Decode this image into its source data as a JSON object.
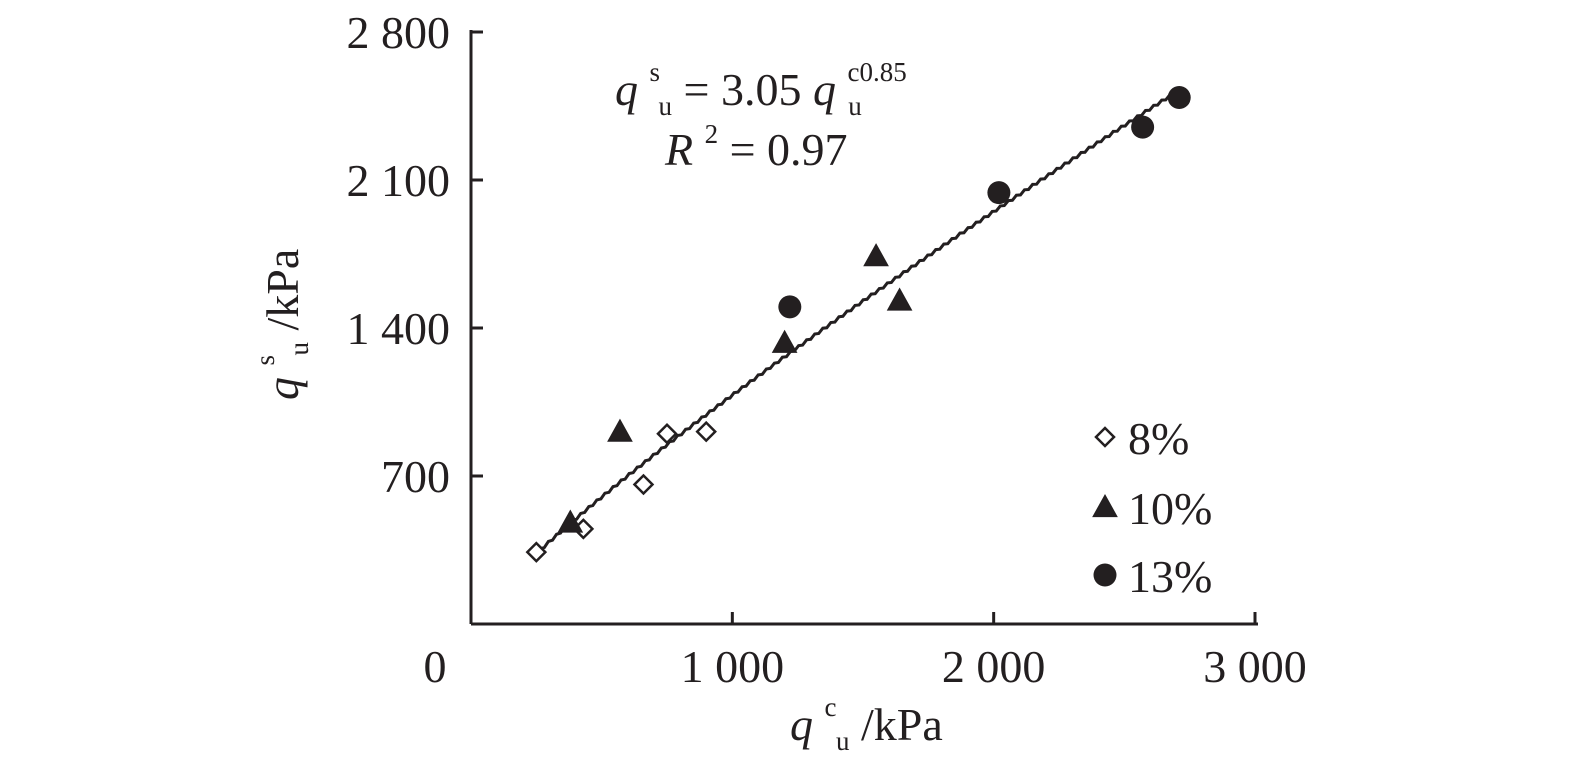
{
  "chart_data": {
    "type": "scatter",
    "title": "",
    "xlim": [
      0,
      3000
    ],
    "ylim": [
      0,
      2800
    ],
    "x_ticks": [
      {
        "value": 0,
        "label": "0"
      },
      {
        "value": 1000,
        "label": "1 000"
      },
      {
        "value": 2000,
        "label": "2 000"
      },
      {
        "value": 3000,
        "label": "3 000"
      }
    ],
    "y_ticks": [
      {
        "value": 700,
        "label": "700"
      },
      {
        "value": 1400,
        "label": "1 400"
      },
      {
        "value": 2100,
        "label": "2 100"
      },
      {
        "value": 2800,
        "label": "2 800"
      }
    ],
    "xlabel": {
      "main": "q",
      "sub": "u",
      "sup": "c",
      "unit": "/kPa"
    },
    "ylabel": {
      "main": "q",
      "sub": "u",
      "sup": "s",
      "unit": "/kPa"
    },
    "grid": false,
    "legend_position": "bottom-right",
    "series": [
      {
        "name": "8%",
        "marker": "diamond-open",
        "points": [
          [
            250,
            340
          ],
          [
            430,
            450
          ],
          [
            660,
            660
          ],
          [
            750,
            900
          ],
          [
            900,
            910
          ]
        ]
      },
      {
        "name": "10%",
        "marker": "triangle-filled",
        "points": [
          [
            380,
            480
          ],
          [
            570,
            910
          ],
          [
            1200,
            1330
          ],
          [
            1550,
            1740
          ],
          [
            1640,
            1530
          ]
        ]
      },
      {
        "name": "13%",
        "marker": "circle-filled",
        "points": [
          [
            1220,
            1500
          ],
          [
            2020,
            2040
          ],
          [
            2570,
            2350
          ],
          [
            2710,
            2490
          ]
        ]
      }
    ],
    "fit": {
      "coefficient": 3.05,
      "exponent": 0.85,
      "x_range": [
        250,
        2720
      ],
      "equation": {
        "lhs_main": "q",
        "lhs_sup": "s",
        "lhs_sub": "u",
        "eq": " = 3.05",
        "rhs_main": "q",
        "rhs_sup": "c0.85",
        "rhs_sub": "u"
      },
      "r2": {
        "main": "R",
        "sup": "2",
        "rest": " = 0.97"
      }
    }
  }
}
